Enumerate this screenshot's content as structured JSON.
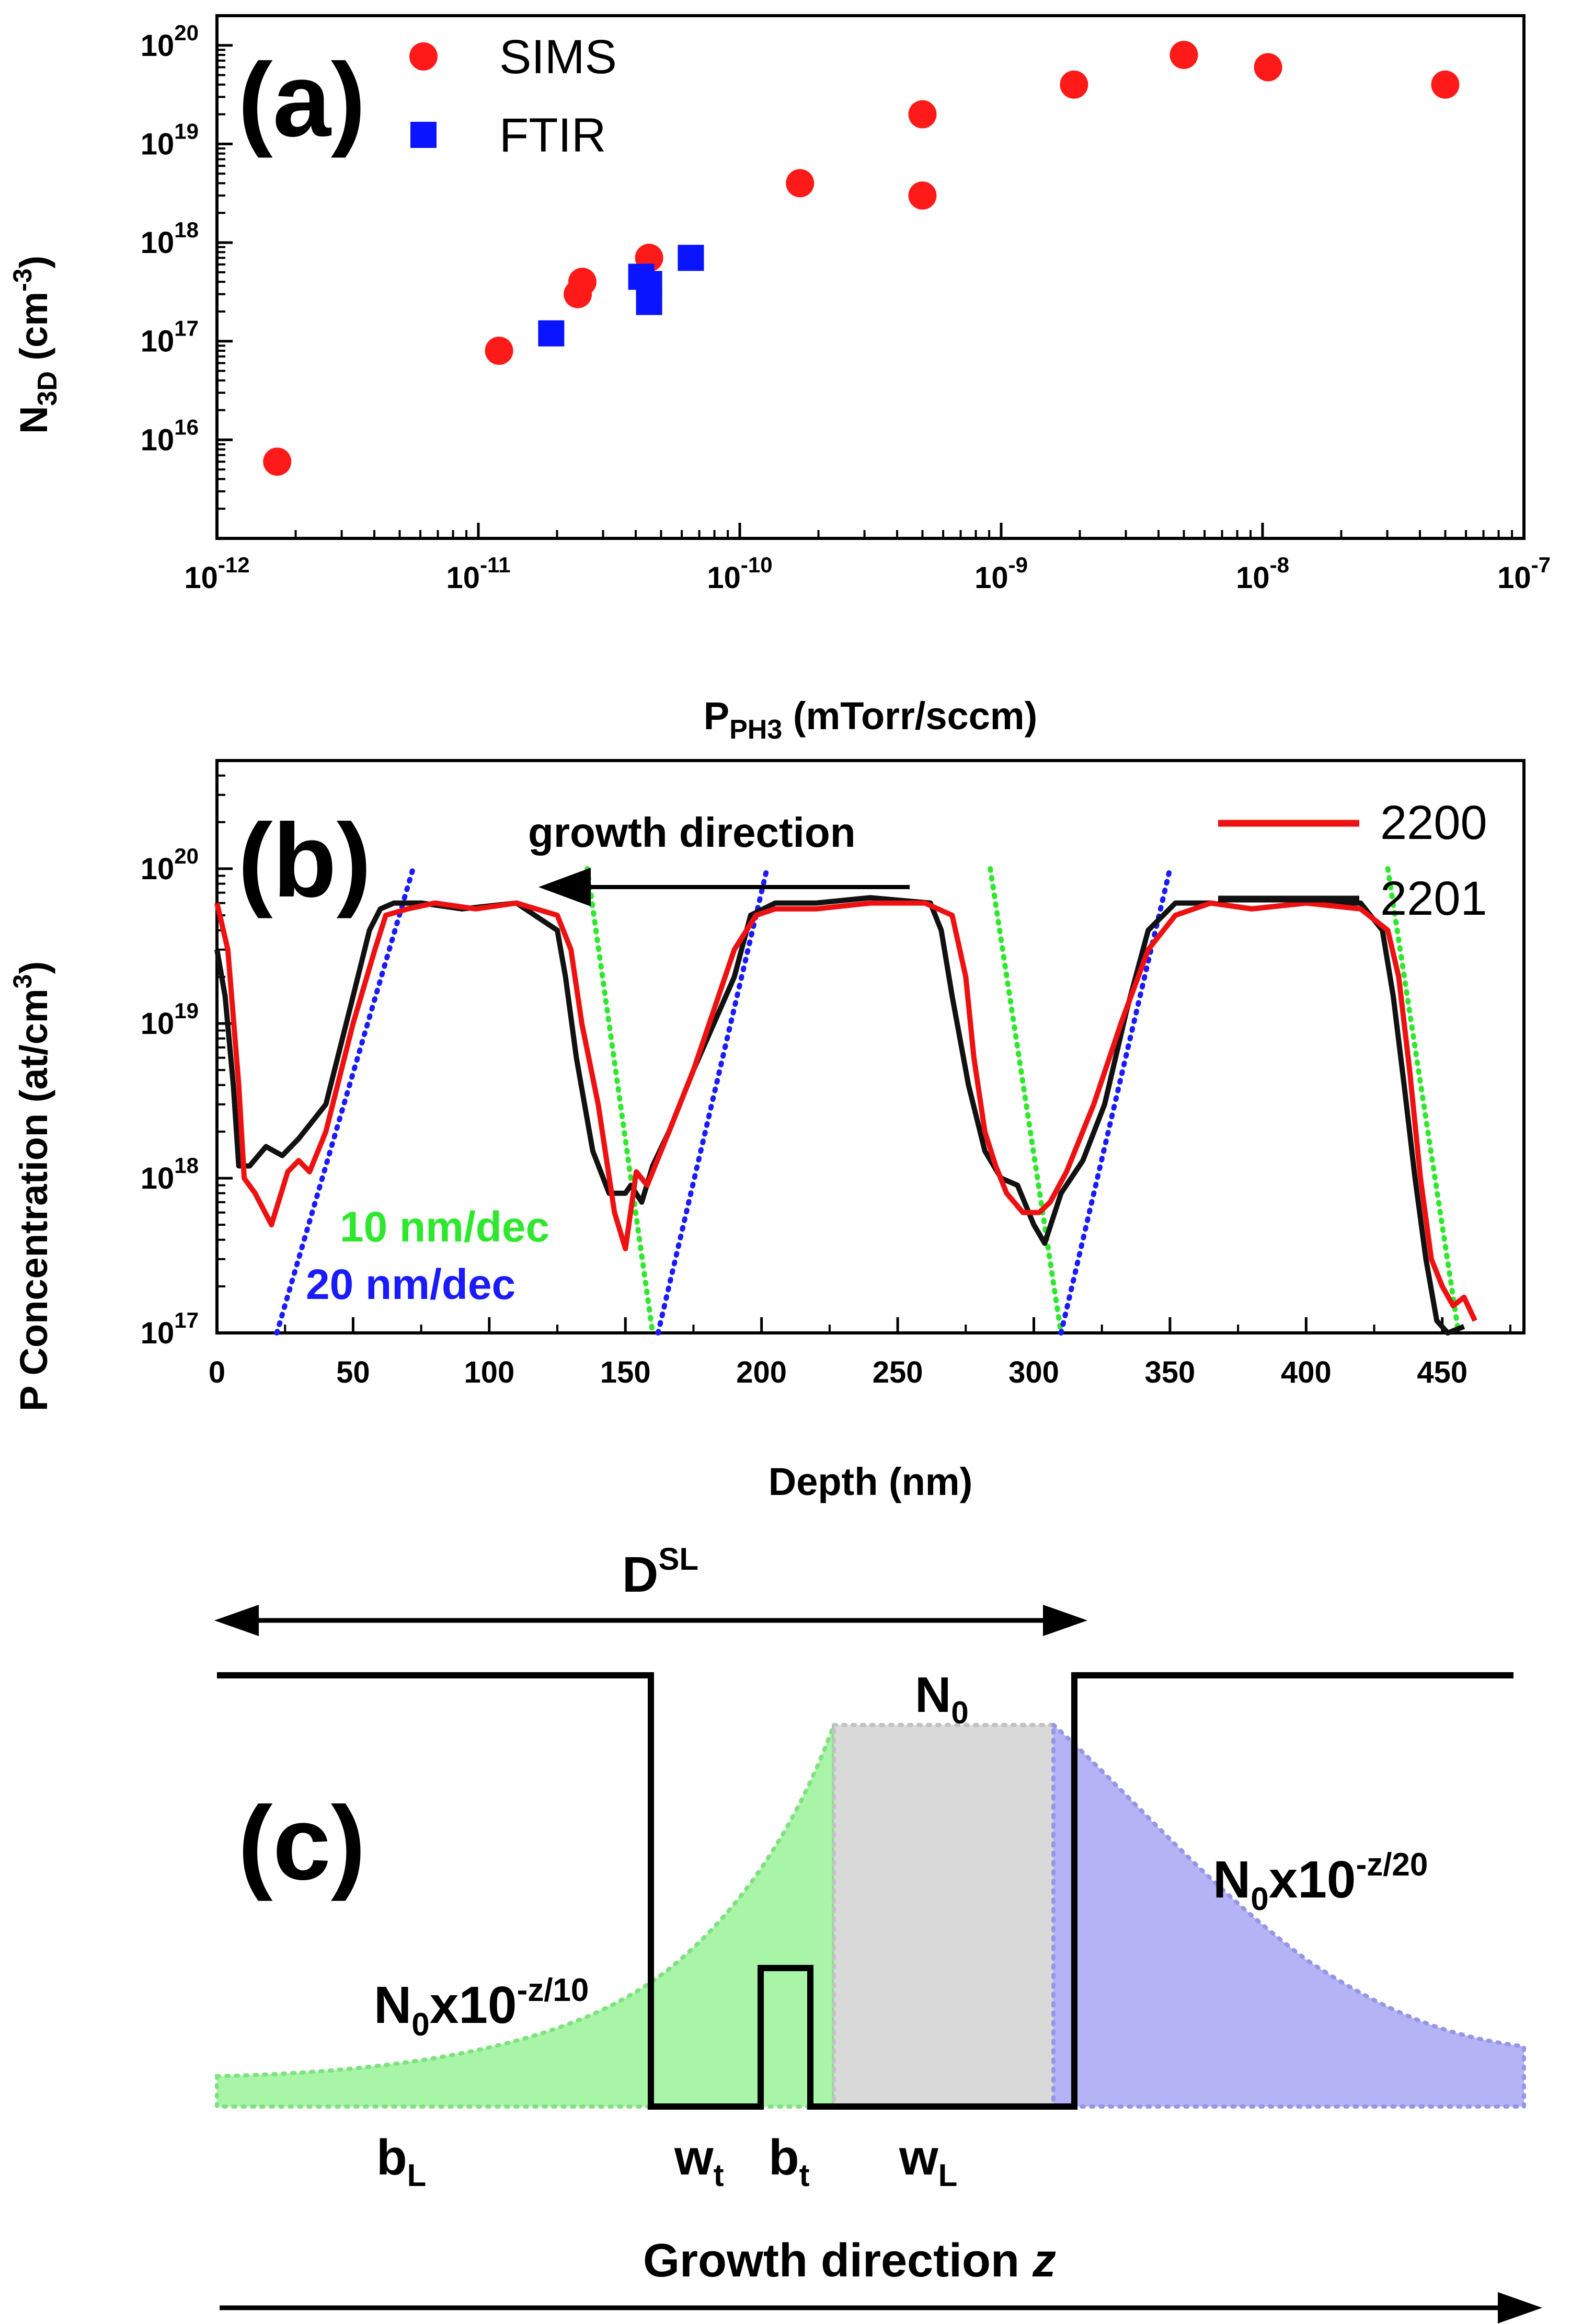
{
  "chart_data": [
    {
      "panel": "(a)",
      "type": "scatter",
      "xlabel": "P",
      "xlabel_sub": "PH3",
      "xlabel_rest": " (mTorr/sccm)",
      "ylabel_main": "N",
      "ylabel_sub": "3D",
      "ylabel_rest": " (cm",
      "ylabel_sup": "-3",
      "ylabel_close": ")",
      "x_scale": "log",
      "y_scale": "log",
      "xlim": [
        1e-12,
        1e-07
      ],
      "ylim": [
        1000000000000000.0,
        2e+20
      ],
      "x_ticks": [
        {
          "base": "10",
          "exp": "-12",
          "value": 1e-12
        },
        {
          "base": "10",
          "exp": "-11",
          "value": 1e-11
        },
        {
          "base": "10",
          "exp": "-10",
          "value": 1e-10
        },
        {
          "base": "10",
          "exp": "-9",
          "value": 1e-09
        },
        {
          "base": "10",
          "exp": "-8",
          "value": 1e-08
        },
        {
          "base": "10",
          "exp": "-7",
          "value": 1e-07
        }
      ],
      "y_ticks": [
        {
          "base": "10",
          "exp": "16",
          "value": 1e+16
        },
        {
          "base": "10",
          "exp": "17",
          "value": 1e+17
        },
        {
          "base": "10",
          "exp": "18",
          "value": 1e+18
        },
        {
          "base": "10",
          "exp": "19",
          "value": 1e+19
        },
        {
          "base": "10",
          "exp": "20",
          "value": 1e+20
        }
      ],
      "legend_position": "top-left",
      "series": [
        {
          "name": "SIMS",
          "marker": "circle",
          "color": "#ff1a1a",
          "points": [
            {
              "x": 1.7e-12,
              "y": 6000000000000000.0
            },
            {
              "x": 1.2e-11,
              "y": 8e+16
            },
            {
              "x": 2.4e-11,
              "y": 3e+17
            },
            {
              "x": 2.5e-11,
              "y": 4e+17
            },
            {
              "x": 4.5e-11,
              "y": 7e+17
            },
            {
              "x": 1.7e-10,
              "y": 4e+18
            },
            {
              "x": 5e-10,
              "y": 3e+18
            },
            {
              "x": 5e-10,
              "y": 2e+19
            },
            {
              "x": 1.9e-09,
              "y": 4e+19
            },
            {
              "x": 5e-09,
              "y": 8e+19
            },
            {
              "x": 1.05e-08,
              "y": 6e+19
            },
            {
              "x": 5e-08,
              "y": 4e+19
            }
          ]
        },
        {
          "name": "FTIR",
          "marker": "square",
          "color": "#0a14ff",
          "points": [
            {
              "x": 1.9e-11,
              "y": 1.2e+17
            },
            {
              "x": 4.2e-11,
              "y": 4.5e+17
            },
            {
              "x": 4.5e-11,
              "y": 3.8e+17
            },
            {
              "x": 4.5e-11,
              "y": 2.5e+17
            },
            {
              "x": 6.5e-11,
              "y": 7e+17
            }
          ]
        }
      ]
    },
    {
      "panel": "(b)",
      "type": "line",
      "xlabel": "Depth (nm)",
      "ylabel": "P Concentration (at/cm",
      "ylabel_sup": "3",
      "ylabel_close": ")",
      "y_scale": "log",
      "xlim": [
        0,
        480
      ],
      "ylim": [
        1e+17,
        5e+20
      ],
      "x_ticks": [
        "0",
        "50",
        "100",
        "150",
        "200",
        "250",
        "300",
        "350",
        "400",
        "450"
      ],
      "y_ticks": [
        {
          "base": "10",
          "exp": "17",
          "value": 1e+17
        },
        {
          "base": "10",
          "exp": "18",
          "value": 1e+18
        },
        {
          "base": "10",
          "exp": "19",
          "value": 1e+19
        },
        {
          "base": "10",
          "exp": "20",
          "value": 1e+20
        }
      ],
      "annotation_arrow": "growth direction",
      "annotation_green": "10 nm/dec",
      "annotation_blue": "20 nm/dec",
      "legend_position": "top-right",
      "series": [
        {
          "name": "2200",
          "color": "#ee1111",
          "x": [
            0,
            4,
            8,
            10,
            14,
            20,
            26,
            30,
            34,
            40,
            50,
            58,
            62,
            70,
            80,
            95,
            110,
            125,
            130,
            134,
            140,
            146,
            150,
            154,
            158,
            166,
            175,
            190,
            198,
            205,
            220,
            240,
            260,
            270,
            275,
            278,
            282,
            286,
            290,
            296,
            302,
            306,
            312,
            322,
            332,
            342,
            352,
            365,
            380,
            400,
            420,
            430,
            434,
            438,
            442,
            446,
            450,
            454,
            458,
            462
          ],
          "y": [
            6e+19,
            3e+19,
            4e+18,
            1e+18,
            8e+17,
            5e+17,
            1.1e+18,
            1.3e+18,
            1.1e+18,
            2e+18,
            1e+19,
            3e+19,
            5e+19,
            5.5e+19,
            6e+19,
            5.5e+19,
            6e+19,
            5e+19,
            3e+19,
            1e+19,
            3e+18,
            6e+17,
            3.5e+17,
            1.1e+18,
            9e+17,
            2e+18,
            5e+18,
            3e+19,
            5e+19,
            5.5e+19,
            5.5e+19,
            6e+19,
            6e+19,
            5e+19,
            2e+19,
            6e+18,
            2e+18,
            1.2e+18,
            8e+17,
            6e+17,
            6e+17,
            7e+17,
            1.1e+18,
            3e+18,
            1e+19,
            3e+19,
            5e+19,
            6e+19,
            5.5e+19,
            6e+19,
            5.5e+19,
            4e+19,
            2e+19,
            5e+18,
            1e+18,
            3e+17,
            2e+17,
            1.5e+17,
            1.7e+17,
            1.2e+17
          ]
        },
        {
          "name": "2201",
          "color": "#111111",
          "x": [
            0,
            3,
            6,
            8,
            12,
            18,
            24,
            30,
            40,
            50,
            56,
            60,
            65,
            75,
            90,
            110,
            125,
            128,
            132,
            138,
            144,
            150,
            152,
            156,
            160,
            166,
            175,
            190,
            196,
            205,
            220,
            240,
            262,
            266,
            270,
            276,
            282,
            288,
            294,
            300,
            304,
            310,
            318,
            326,
            334,
            342,
            352,
            365,
            380,
            400,
            420,
            428,
            432,
            436,
            440,
            444,
            448,
            452,
            458
          ],
          "y": [
            3e+19,
            1.5e+19,
            4e+18,
            1.2e+18,
            1.2e+18,
            1.6e+18,
            1.4e+18,
            1.8e+18,
            3e+18,
            1.5e+19,
            4e+19,
            5.5e+19,
            6e+19,
            6e+19,
            5.5e+19,
            6e+19,
            4e+19,
            2e+19,
            6e+18,
            1.5e+18,
            8e+17,
            8e+17,
            9e+17,
            7e+17,
            1.2e+18,
            2e+18,
            5e+18,
            2e+19,
            5e+19,
            6e+19,
            6e+19,
            6.5e+19,
            6e+19,
            4e+19,
            1.5e+19,
            4e+18,
            1.5e+18,
            1e+18,
            9e+17,
            5e+17,
            3.8e+17,
            8e+17,
            1.3e+18,
            3e+18,
            1.2e+19,
            4e+19,
            6e+19,
            6e+19,
            5.5e+19,
            6e+19,
            6e+19,
            4e+19,
            1.5e+19,
            4e+18,
            1e+18,
            3e+17,
            1.2e+17,
            1e+17,
            1.1e+17
          ]
        }
      ],
      "guides": [
        {
          "color": "#2ee82e",
          "slope": "10 nm/dec",
          "x1": 136,
          "y1": 1e+20,
          "x2": 160,
          "y2": 1e+17
        },
        {
          "color": "#2ee82e",
          "slope": "10 nm/dec",
          "x1": 284,
          "y1": 1e+20,
          "x2": 310,
          "y2": 1e+17
        },
        {
          "color": "#2ee82e",
          "slope": "10 nm/dec",
          "x1": 430,
          "y1": 1e+20,
          "x2": 456,
          "y2": 1e+17
        },
        {
          "color": "#1a1aff",
          "slope": "20 nm/dec",
          "x1": 22,
          "y1": 1e+17,
          "x2": 72,
          "y2": 1e+20
        },
        {
          "color": "#1a1aff",
          "slope": "20 nm/dec",
          "x1": 162,
          "y1": 1e+17,
          "x2": 202,
          "y2": 1e+20
        },
        {
          "color": "#1a1aff",
          "slope": "20 nm/dec",
          "x1": 310,
          "y1": 1e+17,
          "x2": 350,
          "y2": 1e+20
        }
      ]
    }
  ],
  "diagram": {
    "panel": "(c)",
    "top_label": "D",
    "top_label_sup": "SL",
    "n0": "N",
    "n0_sub": "0",
    "right_formula_base": "N",
    "right_formula_sub": "0",
    "right_formula_mid": "x10",
    "right_formula_sup": "-z/20",
    "left_formula_base": "N",
    "left_formula_sub": "0",
    "left_formula_mid": "x10",
    "left_formula_sup": "-z/10",
    "regions": [
      {
        "main": "b",
        "sub": "L"
      },
      {
        "main": "w",
        "sub": "t"
      },
      {
        "main": "b",
        "sub": "t"
      },
      {
        "main": "w",
        "sub": "L"
      }
    ],
    "bottom_label": "Growth direction ",
    "bottom_label_var": "z",
    "colors": {
      "green_fill": "#a8f5a8",
      "blue_fill": "#b3b3f5",
      "gray_fill": "#d9d9d9"
    }
  }
}
